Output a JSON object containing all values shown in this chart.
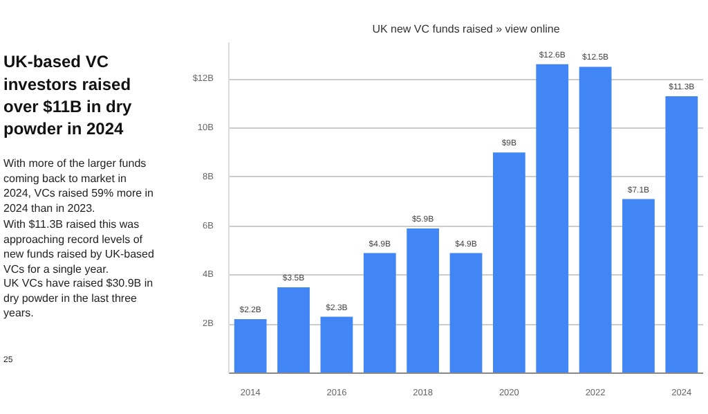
{
  "chart_data": {
    "type": "bar",
    "title": "UK new VC funds raised » view online",
    "x": [
      2014,
      2015,
      2016,
      2017,
      2018,
      2019,
      2020,
      2021,
      2022,
      2023,
      2024
    ],
    "values": [
      2.2,
      3.5,
      2.3,
      4.9,
      5.9,
      4.9,
      9,
      12.6,
      12.5,
      7.1,
      11.3
    ],
    "value_labels": [
      "$2.2B",
      "$3.5B",
      "$2.3B",
      "$4.9B",
      "$5.9B",
      "$4.9B",
      "$9B",
      "$12.6B",
      "$12.5B",
      "$7.1B",
      "$11.3B"
    ],
    "color": "#4285f4",
    "xlim": [
      2013.5,
      2024.5
    ],
    "xticks": [
      2014,
      2016,
      2018,
      2020,
      2022,
      2024
    ],
    "ylim": [
      0,
      13.5
    ],
    "yticks": [
      {
        "value": 2,
        "label": "2B"
      },
      {
        "value": 4,
        "label": "4B"
      },
      {
        "value": 6,
        "label": "6B"
      },
      {
        "value": 8,
        "label": "8B"
      },
      {
        "value": 10,
        "label": "10B"
      },
      {
        "value": 12,
        "label": "$12B"
      }
    ],
    "grid": "y",
    "annotations": [
      "UK-based VC\ninvestors raised\nover $11B in dry\npowder in 2024",
      "With more of the larger funds\ncoming back to market in\n2024, VCs raised 59% more in\n2024 than in 2023.",
      "With $11.3B raised this was\napproaching record levels of\nnew funds raised by UK-based\nVCs for a single year.",
      "UK VCs have raised $30.9B in\ndry powder in the last three\nyears.",
      "25"
    ]
  }
}
